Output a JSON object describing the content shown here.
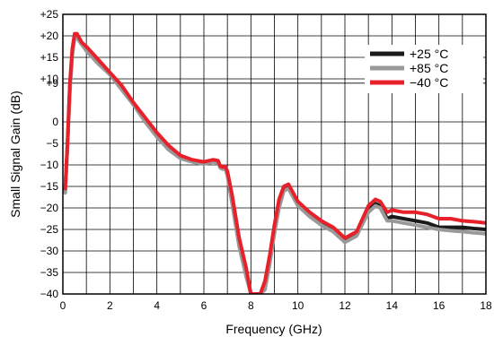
{
  "chart_data": {
    "type": "line",
    "xlabel": "Frequency (GHz)",
    "ylabel": "Small Signal Gain (dB)",
    "xlim": [
      0,
      18
    ],
    "ylim": [
      -40,
      25
    ],
    "x_ticks": [
      0,
      2,
      4,
      6,
      8,
      10,
      12,
      14,
      16,
      18
    ],
    "x_tick_labels": [
      "0",
      "2",
      "4",
      "6",
      "8",
      "10",
      "12",
      "14",
      "16",
      "18"
    ],
    "x_minor_step": 1,
    "y_ticks": [
      25,
      20,
      15,
      10,
      9,
      0,
      -5,
      -10,
      -15,
      -20,
      -25,
      -30,
      -35,
      -40
    ],
    "y_tick_labels": [
      "+25",
      "+20",
      "+15",
      "+10",
      "+9",
      "0",
      "−5",
      "−10",
      "−15",
      "−20",
      "−25",
      "−30",
      "−35",
      "−40"
    ],
    "grid": true,
    "legend_position": "top-right",
    "series": [
      {
        "name": "+25 °C",
        "color": "#1a1a1a",
        "x": [
          0.1,
          0.2,
          0.3,
          0.4,
          0.5,
          0.6,
          0.8,
          1.0,
          1.5,
          2.0,
          2.5,
          3.0,
          3.5,
          4.0,
          4.5,
          5.0,
          5.5,
          6.0,
          6.4,
          6.6,
          6.7,
          6.8,
          6.9,
          7.0,
          7.2,
          7.5,
          7.8,
          8.0,
          8.2,
          8.4,
          8.6,
          8.8,
          9.0,
          9.2,
          9.4,
          9.6,
          9.8,
          10.0,
          10.5,
          11.0,
          11.5,
          12.0,
          12.5,
          13.0,
          13.3,
          13.5,
          13.8,
          14.0,
          14.5,
          15.0,
          15.5,
          16.0,
          16.5,
          17.0,
          17.5,
          18.0
        ],
        "values": [
          -16,
          -5,
          8,
          16,
          20,
          20,
          18,
          17,
          14,
          11,
          8,
          4,
          0.5,
          -3,
          -6,
          -8,
          -9,
          -9.5,
          -9,
          -9.2,
          -10.5,
          -10.7,
          -10.5,
          -12,
          -18,
          -28,
          -35,
          -40,
          -40,
          -40,
          -38,
          -32,
          -25,
          -19,
          -15.5,
          -15,
          -17,
          -19,
          -21.5,
          -23.5,
          -25,
          -27.5,
          -26,
          -20.5,
          -19,
          -19.5,
          -22.5,
          -22,
          -22.5,
          -23,
          -23.5,
          -24.5,
          -24.5,
          -24.5,
          -24.8,
          -25
        ]
      },
      {
        "name": "+85 °C",
        "color": "#999999",
        "x": [
          0.1,
          0.2,
          0.3,
          0.4,
          0.5,
          0.6,
          0.8,
          1.0,
          1.5,
          2.0,
          2.5,
          3.0,
          3.5,
          4.0,
          4.5,
          5.0,
          5.5,
          6.0,
          6.4,
          6.6,
          6.7,
          6.8,
          6.9,
          7.0,
          7.2,
          7.5,
          7.8,
          8.0,
          8.2,
          8.4,
          8.6,
          8.8,
          9.0,
          9.2,
          9.4,
          9.6,
          9.8,
          10.0,
          10.5,
          11.0,
          11.5,
          12.0,
          12.5,
          13.0,
          13.3,
          13.5,
          13.8,
          14.0,
          14.5,
          15.0,
          15.5,
          16.0,
          16.5,
          17.0,
          17.5,
          18.0
        ],
        "values": [
          -16.5,
          -5.5,
          7,
          15.5,
          19.5,
          19.5,
          18,
          16.5,
          13.5,
          11,
          7.5,
          4,
          0,
          -3.5,
          -6.5,
          -8.5,
          -9.3,
          -9.8,
          -9.3,
          -9.5,
          -10.7,
          -11,
          -10.7,
          -12.5,
          -19,
          -29,
          -36,
          -40,
          -40,
          -40,
          -39,
          -33,
          -26,
          -20,
          -16,
          -15.5,
          -17.5,
          -19.5,
          -22,
          -24,
          -25.5,
          -28,
          -26.5,
          -21,
          -19.5,
          -20,
          -23,
          -23,
          -23.5,
          -24,
          -24.5,
          -25,
          -25.3,
          -25.5,
          -25.8,
          -26
        ]
      },
      {
        "name": "−40 °C",
        "color": "#e8202a",
        "x": [
          0.1,
          0.2,
          0.3,
          0.4,
          0.5,
          0.6,
          0.8,
          1.0,
          1.5,
          2.0,
          2.5,
          3.0,
          3.5,
          4.0,
          4.5,
          5.0,
          5.5,
          6.0,
          6.4,
          6.6,
          6.7,
          6.8,
          6.9,
          7.0,
          7.2,
          7.5,
          7.8,
          8.0,
          8.2,
          8.4,
          8.6,
          8.8,
          9.0,
          9.2,
          9.4,
          9.6,
          9.8,
          10.0,
          10.5,
          11.0,
          11.5,
          12.0,
          12.5,
          13.0,
          13.3,
          13.5,
          13.8,
          14.0,
          14.5,
          15.0,
          15.5,
          16.0,
          16.5,
          17.0,
          17.5,
          18.0
        ],
        "values": [
          -15.5,
          -4.5,
          9,
          17,
          20.5,
          20.5,
          18.5,
          17.5,
          14.5,
          11.5,
          8.5,
          4.5,
          1,
          -2.5,
          -5.5,
          -7.8,
          -8.8,
          -9.3,
          -8.8,
          -9,
          -10.3,
          -10.5,
          -10.3,
          -11.5,
          -17,
          -27,
          -34,
          -40,
          -40,
          -40,
          -37,
          -31,
          -24,
          -18,
          -15,
          -14.5,
          -16.5,
          -18.5,
          -21,
          -23,
          -24.5,
          -27,
          -25.5,
          -19.5,
          -18,
          -18.5,
          -21,
          -20.5,
          -21,
          -21,
          -21.5,
          -22.5,
          -22.5,
          -23,
          -23.2,
          -23.5
        ]
      }
    ]
  }
}
